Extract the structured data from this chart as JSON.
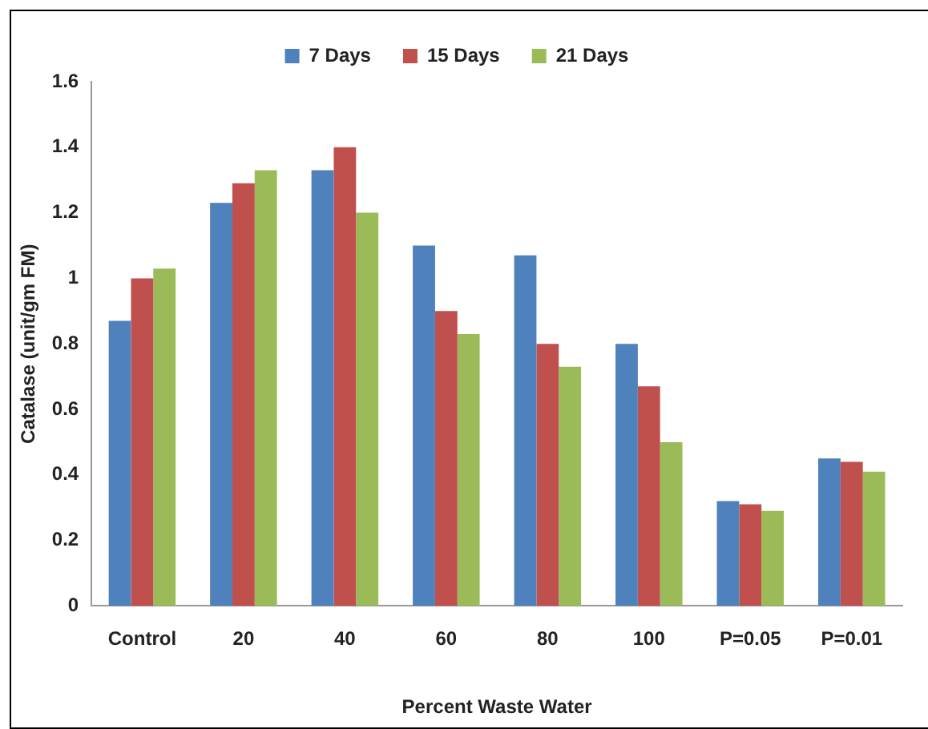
{
  "chart_data": {
    "type": "bar",
    "xlabel": "Percent Waste Water",
    "ylabel": "Catalase (unit/gm FM)",
    "categories": [
      "Control",
      "20",
      "40",
      "60",
      "80",
      "100",
      "P=0.05",
      "P=0.01"
    ],
    "series": [
      {
        "name": "7 Days",
        "color": "#4f81bd",
        "values": [
          0.87,
          1.23,
          1.33,
          1.1,
          1.07,
          0.8,
          0.32,
          0.45
        ]
      },
      {
        "name": "15 Days",
        "color": "#c0504d",
        "values": [
          1.0,
          1.29,
          1.4,
          0.9,
          0.8,
          0.67,
          0.31,
          0.44
        ]
      },
      {
        "name": "21 Days",
        "color": "#9bbb59",
        "values": [
          1.03,
          1.33,
          1.2,
          0.83,
          0.73,
          0.5,
          0.29,
          0.41
        ]
      }
    ],
    "ylim": [
      0,
      1.6
    ],
    "yticks": [
      0,
      0.2,
      0.4,
      0.6,
      0.8,
      1,
      1.2,
      1.4,
      1.6
    ],
    "grid": false,
    "legend": "top"
  }
}
